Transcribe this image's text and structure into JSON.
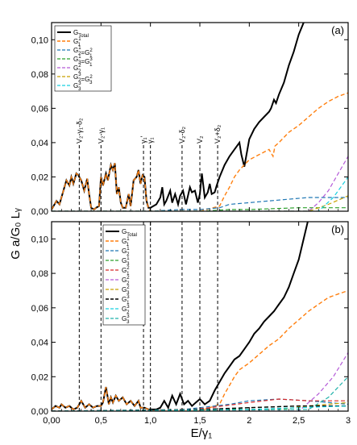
{
  "figure": {
    "ylabel": "G a/G₀ Lᵧ",
    "xlabel": "E/γ₁"
  },
  "colors": {
    "total": "#000000",
    "orange": "#ff7f0e",
    "blue": "#1f77b4",
    "green": "#2ca02c",
    "red": "#d62728",
    "purple": "#b45ad8",
    "olive": "#c8a000",
    "cyan": "#17d0e0",
    "teal": "#20b2aa"
  },
  "chart_data": [
    {
      "type": "line",
      "panel_label": "(a)",
      "xlim": [
        0,
        3
      ],
      "ylim": [
        0,
        0.11
      ],
      "xticks": [
        "0,00",
        "0,5",
        "1,0",
        "1,5",
        "2",
        "2,5",
        "3"
      ],
      "yticks": [
        "0,00",
        "0,02",
        "0,04",
        "0,06",
        "0,08",
        "0,10"
      ],
      "legend": [
        "G_Total",
        "G_1^1",
        "G_2^1=G_1^2",
        "G_3^1=G_1^3",
        "G_2^2",
        "G_2^3=G_3^2",
        "G_3^3"
      ],
      "annotations": [
        {
          "x": 0.28,
          "text": "V₂-γ₁-δ₂"
        },
        {
          "x": 0.5,
          "text": "V₂-γ₁"
        },
        {
          "x": 0.93,
          "text": "γ₁'"
        },
        {
          "x": 1.0,
          "text": "γ₁"
        },
        {
          "x": 1.32,
          "text": "V₂-δ₂"
        },
        {
          "x": 1.5,
          "text": "V₂"
        },
        {
          "x": 1.68,
          "text": "V₂+δ₂"
        }
      ],
      "series": [
        {
          "name": "G_Total",
          "color": "total",
          "dash": "solid",
          "width": 2,
          "x": [
            0,
            0.05,
            0.08,
            0.12,
            0.15,
            0.18,
            0.2,
            0.22,
            0.25,
            0.27,
            0.3,
            0.33,
            0.36,
            0.38,
            0.4,
            0.43,
            0.45,
            0.48,
            0.5,
            0.52,
            0.55,
            0.57,
            0.6,
            0.62,
            0.64,
            0.66,
            0.68,
            0.7,
            0.72,
            0.75,
            0.78,
            0.8,
            0.83,
            0.86,
            0.88,
            0.9,
            0.92,
            0.94,
            0.96,
            0.98,
            1.0,
            1.03,
            1.06,
            1.1,
            1.12,
            1.14,
            1.16,
            1.2,
            1.22,
            1.25,
            1.28,
            1.3,
            1.33,
            1.36,
            1.4,
            1.42,
            1.45,
            1.48,
            1.5,
            1.52,
            1.55,
            1.58,
            1.6,
            1.62,
            1.65,
            1.67,
            1.7,
            1.75,
            1.8,
            1.85,
            1.9,
            1.92,
            1.95,
            2.0,
            2.05,
            2.1,
            2.15,
            2.2,
            2.22,
            2.25,
            2.27,
            2.3,
            2.35,
            2.4,
            2.45,
            2.5,
            2.55,
            2.6
          ],
          "y": [
            0.001,
            0.006,
            0.004,
            0.012,
            0.018,
            0.015,
            0.02,
            0.016,
            0.022,
            0.021,
            0.018,
            0.012,
            0.019,
            0.01,
            0.002,
            0.001,
            0.002,
            0.003,
            0.02,
            0.015,
            0.022,
            0.018,
            0.027,
            0.024,
            0.028,
            0.01,
            0.014,
            0.005,
            0.002,
            0.002,
            0.01,
            0.003,
            0.018,
            0.02,
            0.024,
            0.016,
            0.021,
            0.02,
            0.006,
            0.002,
            0.002,
            0.003,
            0.004,
            0.008,
            0.014,
            0.004,
            0.006,
            0.012,
            0.005,
            0.01,
            0.004,
            0.009,
            0.012,
            0.004,
            0.014,
            0.011,
            0.012,
            0.005,
            0.01,
            0.022,
            0.008,
            0.011,
            0.016,
            0.01,
            0.011,
            0.015,
            0.02,
            0.027,
            0.032,
            0.036,
            0.04,
            0.033,
            0.026,
            0.042,
            0.048,
            0.052,
            0.055,
            0.058,
            0.06,
            0.065,
            0.063,
            0.068,
            0.075,
            0.085,
            0.093,
            0.103,
            0.11,
            0.12
          ]
        },
        {
          "name": "G_1^1",
          "color": "orange",
          "dash": "5,3",
          "width": 1.4,
          "x": [
            0,
            0.05,
            0.08,
            0.12,
            0.15,
            0.18,
            0.2,
            0.22,
            0.25,
            0.27,
            0.3,
            0.33,
            0.36,
            0.38,
            0.4,
            0.43,
            0.45,
            0.48,
            0.5,
            0.52,
            0.55,
            0.57,
            0.6,
            0.62,
            0.64,
            0.66,
            0.68,
            0.7,
            0.72,
            0.75,
            0.78,
            0.8,
            0.83,
            0.86,
            0.88,
            0.9,
            0.92,
            0.94,
            0.96,
            0.98,
            1.0,
            1.3,
            1.5,
            1.7,
            1.75,
            1.8,
            1.85,
            1.9,
            2.0,
            2.1,
            2.2,
            2.24,
            2.26,
            2.3,
            2.4,
            2.5,
            2.6,
            2.7,
            2.8,
            2.9,
            3.0
          ],
          "y": [
            0.001,
            0.006,
            0.004,
            0.012,
            0.018,
            0.015,
            0.02,
            0.016,
            0.022,
            0.021,
            0.018,
            0.012,
            0.019,
            0.01,
            0.002,
            0.001,
            0.002,
            0.003,
            0.02,
            0.015,
            0.022,
            0.018,
            0.027,
            0.024,
            0.028,
            0.01,
            0.014,
            0.005,
            0.002,
            0.002,
            0.01,
            0.003,
            0.018,
            0.02,
            0.024,
            0.016,
            0.021,
            0.02,
            0.006,
            0.002,
            0.0,
            0.0,
            0.0,
            0.003,
            0.009,
            0.014,
            0.02,
            0.024,
            0.03,
            0.033,
            0.036,
            0.032,
            0.038,
            0.04,
            0.046,
            0.05,
            0.055,
            0.06,
            0.064,
            0.067,
            0.069
          ]
        },
        {
          "name": "G_2^1=G_1^2",
          "color": "blue",
          "dash": "5,3",
          "width": 1.2,
          "x": [
            0,
            1.0,
            1.3,
            1.5,
            1.7,
            1.8,
            2.0,
            2.2,
            2.4,
            2.6,
            2.8,
            3.0
          ],
          "y": [
            0,
            0.0,
            0.001,
            0.001,
            0.002,
            0.004,
            0.005,
            0.006,
            0.007,
            0.008,
            0.008,
            0.008
          ]
        },
        {
          "name": "G_3^1=G_1^3",
          "color": "green",
          "dash": "5,3",
          "width": 1.2,
          "x": [
            0,
            1.5,
            1.8,
            2.0,
            2.5,
            3.0
          ],
          "y": [
            0,
            0.0,
            0.001,
            0.001,
            0.002,
            0.002
          ]
        },
        {
          "name": "G_2^2",
          "color": "purple",
          "dash": "5,3",
          "width": 1.2,
          "x": [
            0,
            2.6,
            2.7,
            2.8,
            2.9,
            3.0
          ],
          "y": [
            0,
            0.0,
            0.005,
            0.012,
            0.022,
            0.032
          ]
        },
        {
          "name": "G_2^3=G_3^2",
          "color": "olive",
          "dash": "5,3",
          "width": 1.2,
          "x": [
            0,
            2.6,
            2.8,
            3.0
          ],
          "y": [
            0,
            0.0,
            0.004,
            0.009
          ]
        },
        {
          "name": "G_3^3",
          "color": "cyan",
          "dash": "5,3",
          "width": 1.2,
          "x": [
            0,
            2.7,
            2.85,
            3.0
          ],
          "y": [
            0,
            0.0,
            0.008,
            0.02
          ]
        }
      ]
    },
    {
      "type": "line",
      "panel_label": "(b)",
      "xlim": [
        0,
        3
      ],
      "ylim": [
        0,
        0.11
      ],
      "xticks": [
        "0,00",
        "0,5",
        "1,0",
        "1,5",
        "2",
        "2,5",
        "3"
      ],
      "yticks": [
        "0,00",
        "0,02",
        "0,04",
        "0,06",
        "0,08",
        "0,10"
      ],
      "legend": [
        "G_Total",
        "G_1^1",
        "G_2^1",
        "G_3^1",
        "G_1^2",
        "G_2^2",
        "G_3^2",
        "G_1^3",
        "G_2^3",
        "G_3^3"
      ],
      "series": [
        {
          "name": "G_Total",
          "color": "total",
          "dash": "solid",
          "width": 2,
          "x": [
            0,
            0.04,
            0.08,
            0.1,
            0.14,
            0.18,
            0.22,
            0.26,
            0.3,
            0.34,
            0.38,
            0.42,
            0.46,
            0.5,
            0.52,
            0.55,
            0.58,
            0.6,
            0.62,
            0.65,
            0.68,
            0.72,
            0.76,
            0.8,
            0.84,
            0.88,
            0.9,
            0.94,
            0.98,
            1.02,
            1.06,
            1.1,
            1.14,
            1.18,
            1.22,
            1.26,
            1.3,
            1.34,
            1.38,
            1.42,
            1.46,
            1.5,
            1.55,
            1.6,
            1.65,
            1.7,
            1.75,
            1.8,
            1.85,
            1.9,
            1.95,
            2.0,
            2.05,
            2.1,
            2.15,
            2.2,
            2.25,
            2.3,
            2.35,
            2.4,
            2.45,
            2.5,
            2.55,
            2.6
          ],
          "y": [
            0.001,
            0.003,
            0.002,
            0.004,
            0.002,
            0.003,
            0.001,
            0.002,
            0.006,
            0.002,
            0.004,
            0.002,
            0.003,
            0.003,
            0.005,
            0.014,
            0.004,
            0.008,
            0.005,
            0.009,
            0.006,
            0.008,
            0.004,
            0.006,
            0.003,
            0.006,
            0.002,
            0.002,
            0.001,
            0.001,
            0.001,
            0.002,
            0.006,
            0.002,
            0.009,
            0.004,
            0.01,
            0.004,
            0.006,
            0.003,
            0.005,
            0.007,
            0.004,
            0.006,
            0.012,
            0.017,
            0.022,
            0.026,
            0.03,
            0.032,
            0.036,
            0.04,
            0.045,
            0.048,
            0.052,
            0.055,
            0.058,
            0.062,
            0.066,
            0.072,
            0.08,
            0.088,
            0.1,
            0.112
          ]
        },
        {
          "name": "G_1^1",
          "color": "orange",
          "dash": "5,3",
          "width": 1.4,
          "x": [
            0,
            0.04,
            0.08,
            0.1,
            0.14,
            0.18,
            0.22,
            0.26,
            0.3,
            0.34,
            0.38,
            0.42,
            0.46,
            0.5,
            0.52,
            0.55,
            0.58,
            0.6,
            0.62,
            0.65,
            0.68,
            0.72,
            0.76,
            0.8,
            0.84,
            0.88,
            0.9,
            0.94,
            0.98,
            1.0,
            1.5,
            1.7,
            1.75,
            1.8,
            1.85,
            1.9,
            2.0,
            2.1,
            2.2,
            2.3,
            2.4,
            2.5,
            2.6,
            2.7,
            2.8,
            2.9,
            3.0
          ],
          "y": [
            0.001,
            0.003,
            0.002,
            0.004,
            0.002,
            0.003,
            0.001,
            0.002,
            0.006,
            0.002,
            0.004,
            0.002,
            0.003,
            0.003,
            0.005,
            0.014,
            0.004,
            0.008,
            0.005,
            0.009,
            0.006,
            0.008,
            0.004,
            0.006,
            0.003,
            0.006,
            0.002,
            0.002,
            0.001,
            0.0,
            0.0,
            0.004,
            0.01,
            0.015,
            0.02,
            0.024,
            0.028,
            0.033,
            0.038,
            0.042,
            0.048,
            0.053,
            0.058,
            0.062,
            0.066,
            0.068,
            0.07
          ]
        },
        {
          "name": "G_2^1",
          "color": "blue",
          "dash": "5,3",
          "width": 1.2,
          "x": [
            0,
            1.2,
            1.5,
            1.8,
            2.0,
            2.3,
            2.6,
            2.8,
            3.0
          ],
          "y": [
            0,
            0.0,
            0.002,
            0.004,
            0.006,
            0.007,
            0.006,
            0.005,
            0.004
          ]
        },
        {
          "name": "G_3^1",
          "color": "green",
          "dash": "5,3",
          "width": 1.2,
          "x": [
            0,
            1.5,
            2.0,
            2.5,
            3.0
          ],
          "y": [
            0,
            0.0,
            0.002,
            0.003,
            0.003
          ]
        },
        {
          "name": "G_1^2",
          "color": "red",
          "dash": "5,3",
          "width": 1.2,
          "x": [
            0,
            1.3,
            1.6,
            2.0,
            2.3,
            2.6,
            3.0
          ],
          "y": [
            0,
            0.0,
            0.002,
            0.005,
            0.007,
            0.006,
            0.006
          ]
        },
        {
          "name": "G_2^2",
          "color": "purple",
          "dash": "5,3",
          "width": 1.2,
          "x": [
            0,
            2.5,
            2.7,
            2.85,
            3.0
          ],
          "y": [
            0,
            0.0,
            0.01,
            0.02,
            0.034
          ]
        },
        {
          "name": "G_3^2",
          "color": "olive",
          "dash": "5,3",
          "width": 1.2,
          "x": [
            0,
            2.3,
            2.6,
            3.0
          ],
          "y": [
            0,
            0.001,
            0.003,
            0.005
          ]
        },
        {
          "name": "G_1^3",
          "color": "total",
          "dash": "5,3",
          "width": 1.4,
          "x": [
            0,
            1.5,
            2.0,
            2.5,
            3.0
          ],
          "y": [
            0,
            0.001,
            0.002,
            0.003,
            0.003
          ]
        },
        {
          "name": "G_2^3",
          "color": "cyan",
          "dash": "5,3",
          "width": 1.2,
          "x": [
            0,
            2.0,
            2.5,
            3.0
          ],
          "y": [
            0,
            0.001,
            0.002,
            0.003
          ]
        },
        {
          "name": "G_3^3",
          "color": "teal",
          "dash": "5,3",
          "width": 1.2,
          "x": [
            0,
            2.6,
            2.8,
            3.0
          ],
          "y": [
            0,
            0.001,
            0.008,
            0.02
          ]
        }
      ]
    }
  ]
}
